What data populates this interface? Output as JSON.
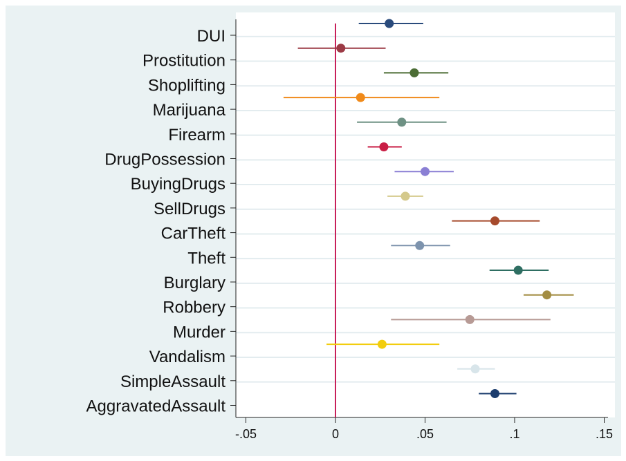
{
  "chart_data": {
    "type": "scatter",
    "subtype": "coefficient-plot",
    "orientation": "horizontal",
    "title": "",
    "xlabel": "",
    "ylabel": "",
    "xlim": [
      -0.055,
      0.155
    ],
    "x_ticks": [
      -0.05,
      0,
      0.05,
      0.1,
      0.15
    ],
    "x_tick_labels": [
      "-.05",
      "0",
      ".05",
      ".1",
      ".15"
    ],
    "reference_line": {
      "x": 0,
      "color": "#c8205a"
    },
    "grid": "horizontal",
    "legend": "none",
    "categories": [
      "DUI",
      "Prostitution",
      "Shoplifting",
      "Marijuana",
      "Firearm",
      "DrugPossession",
      "BuyingDrugs",
      "SellDrugs",
      "CarTheft",
      "Theft",
      "Burglary",
      "Robbery",
      "Murder",
      "Vandalism",
      "SimpleAssault",
      "AggravatedAssault"
    ],
    "points": [
      {
        "category": "DUI",
        "estimate": 0.03,
        "ci_low": 0.013,
        "ci_high": 0.049,
        "color": "#2a4b7c"
      },
      {
        "category": "Prostitution",
        "estimate": 0.003,
        "ci_low": -0.021,
        "ci_high": 0.028,
        "color": "#9c3a45"
      },
      {
        "category": "Shoplifting",
        "estimate": 0.044,
        "ci_low": 0.027,
        "ci_high": 0.063,
        "color": "#4c6d35"
      },
      {
        "category": "Marijuana",
        "estimate": 0.014,
        "ci_low": -0.029,
        "ci_high": 0.058,
        "color": "#f08a1a"
      },
      {
        "category": "Firearm",
        "estimate": 0.037,
        "ci_low": 0.012,
        "ci_high": 0.062,
        "color": "#6e9184"
      },
      {
        "category": "DrugPossession",
        "estimate": 0.027,
        "ci_low": 0.018,
        "ci_high": 0.037,
        "color": "#c91e45"
      },
      {
        "category": "BuyingDrugs",
        "estimate": 0.05,
        "ci_low": 0.033,
        "ci_high": 0.066,
        "color": "#8a7fd4"
      },
      {
        "category": "SellDrugs",
        "estimate": 0.039,
        "ci_low": 0.029,
        "ci_high": 0.049,
        "color": "#d4c98c"
      },
      {
        "category": "CarTheft",
        "estimate": 0.089,
        "ci_low": 0.065,
        "ci_high": 0.114,
        "color": "#a64a2c"
      },
      {
        "category": "Theft",
        "estimate": 0.047,
        "ci_low": 0.031,
        "ci_high": 0.064,
        "color": "#7d93ad"
      },
      {
        "category": "Burglary",
        "estimate": 0.102,
        "ci_low": 0.086,
        "ci_high": 0.119,
        "color": "#2e6e62"
      },
      {
        "category": "Robbery",
        "estimate": 0.118,
        "ci_low": 0.105,
        "ci_high": 0.133,
        "color": "#a38d43"
      },
      {
        "category": "Murder",
        "estimate": 0.075,
        "ci_low": 0.031,
        "ci_high": 0.12,
        "color": "#b79a95"
      },
      {
        "category": "Vandalism",
        "estimate": 0.026,
        "ci_low": -0.005,
        "ci_high": 0.058,
        "color": "#f2cd0d"
      },
      {
        "category": "SimpleAssault",
        "estimate": 0.078,
        "ci_low": 0.068,
        "ci_high": 0.089,
        "color": "#d8e5ea"
      },
      {
        "category": "AggravatedAssault",
        "estimate": 0.089,
        "ci_low": 0.08,
        "ci_high": 0.101,
        "color": "#1c3d6e"
      }
    ]
  }
}
